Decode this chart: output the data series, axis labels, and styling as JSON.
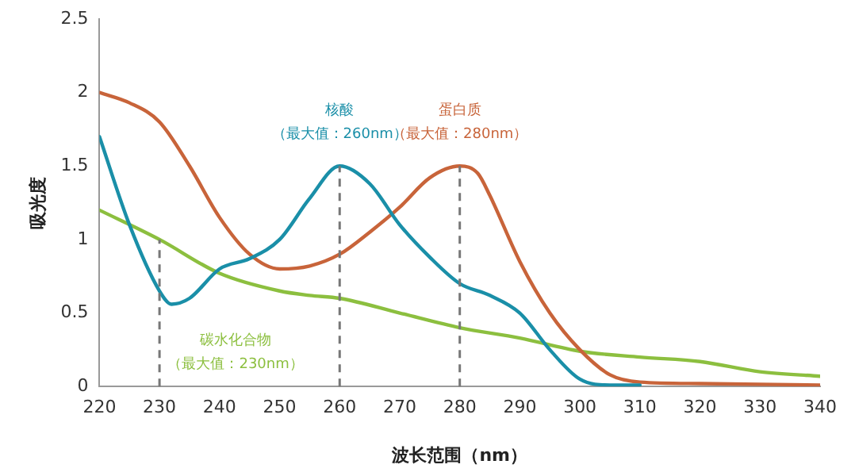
{
  "chart_data": {
    "type": "line",
    "xlabel": "波长范围（nm）",
    "ylabel": "吸光度",
    "xlim": [
      220,
      340
    ],
    "xticks": [
      220,
      230,
      240,
      250,
      260,
      270,
      280,
      290,
      300,
      310,
      320,
      330,
      340
    ],
    "ylim": [
      0,
      2.5
    ],
    "yticks": [
      0,
      0.5,
      1,
      1.5,
      2,
      2.5
    ],
    "grid": false,
    "legend": false,
    "marker": "none",
    "line_style": "solid",
    "series": [
      {
        "name": "核酸",
        "color": "#1a8fa8",
        "x": [
          220,
          225,
          230,
          232,
          235,
          240,
          245,
          250,
          255,
          260,
          265,
          270,
          275,
          280,
          285,
          290,
          295,
          300,
          305,
          310
        ],
        "values": [
          1.7,
          1.1,
          0.65,
          0.56,
          0.6,
          0.8,
          0.87,
          1.0,
          1.28,
          1.5,
          1.38,
          1.1,
          0.88,
          0.7,
          0.62,
          0.5,
          0.25,
          0.05,
          0.01,
          0.01
        ]
      },
      {
        "name": "蛋白质",
        "color": "#c8643a",
        "x": [
          220,
          225,
          230,
          235,
          240,
          245,
          250,
          255,
          260,
          265,
          270,
          275,
          280,
          283,
          285,
          290,
          295,
          300,
          305,
          310,
          320,
          340
        ],
        "values": [
          2.0,
          1.93,
          1.8,
          1.5,
          1.15,
          0.9,
          0.8,
          0.82,
          0.9,
          1.05,
          1.22,
          1.42,
          1.5,
          1.45,
          1.3,
          0.85,
          0.5,
          0.25,
          0.08,
          0.03,
          0.02,
          0.01
        ]
      },
      {
        "name": "碳水化合物",
        "color": "#8cbf3f",
        "x": [
          220,
          230,
          240,
          250,
          255,
          260,
          270,
          280,
          290,
          300,
          310,
          320,
          330,
          340
        ],
        "values": [
          1.2,
          1.0,
          0.77,
          0.65,
          0.62,
          0.6,
          0.5,
          0.4,
          0.33,
          0.24,
          0.2,
          0.17,
          0.1,
          0.07
        ]
      }
    ],
    "ref_lines": [
      {
        "axis": "x",
        "value": 260,
        "color": "#777777",
        "line_style": "dashed"
      },
      {
        "axis": "x",
        "value": 280,
        "color": "#777777",
        "line_style": "dashed"
      },
      {
        "axis": "x",
        "value": 230,
        "color": "#777777",
        "line_style": "dashed"
      }
    ],
    "annotations": [
      "（最大值：260nm）",
      "（最大值：280nm）",
      "（最大值：230nm）"
    ]
  }
}
